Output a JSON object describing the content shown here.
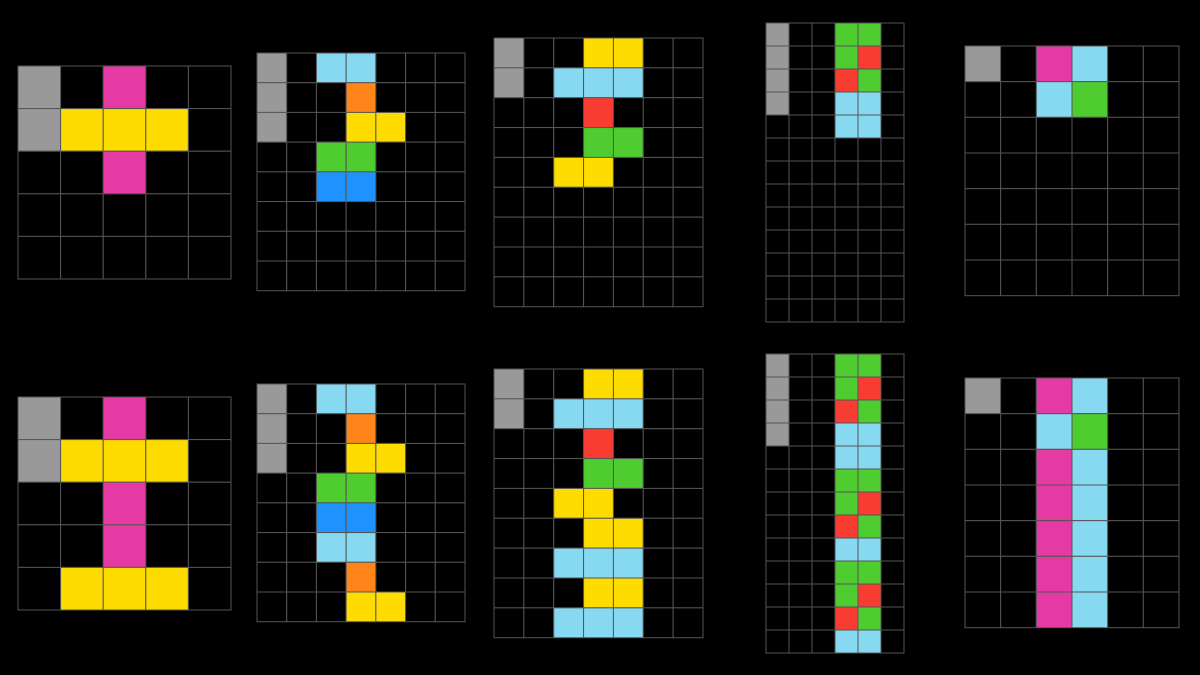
{
  "palette": [
    "#000000",
    "#999999",
    "#e53aa3",
    "#ffdc00",
    "#87d8f1",
    "#ff851b",
    "#4fcc30",
    "#1e93ff",
    "#f93c31"
  ],
  "pairs": [
    {
      "input": {
        "rows": [
          [
            1,
            0,
            2,
            0,
            0
          ],
          [
            1,
            3,
            3,
            3,
            0
          ],
          [
            0,
            0,
            2,
            0,
            0
          ],
          [
            0,
            0,
            0,
            0,
            0
          ],
          [
            0,
            0,
            0,
            0,
            0
          ]
        ]
      },
      "output": {
        "rows": [
          [
            1,
            0,
            2,
            0,
            0
          ],
          [
            1,
            3,
            3,
            3,
            0
          ],
          [
            0,
            0,
            2,
            0,
            0
          ],
          [
            0,
            0,
            2,
            0,
            0
          ],
          [
            0,
            3,
            3,
            3,
            0
          ]
        ]
      }
    },
    {
      "input": {
        "rows": [
          [
            1,
            0,
            4,
            4,
            0,
            0,
            0
          ],
          [
            1,
            0,
            0,
            5,
            0,
            0,
            0
          ],
          [
            1,
            0,
            0,
            3,
            3,
            0,
            0
          ],
          [
            0,
            0,
            6,
            6,
            0,
            0,
            0
          ],
          [
            0,
            0,
            7,
            7,
            0,
            0,
            0
          ],
          [
            0,
            0,
            0,
            0,
            0,
            0,
            0
          ],
          [
            0,
            0,
            0,
            0,
            0,
            0,
            0
          ],
          [
            0,
            0,
            0,
            0,
            0,
            0,
            0
          ]
        ]
      },
      "output": {
        "rows": [
          [
            1,
            0,
            4,
            4,
            0,
            0,
            0
          ],
          [
            1,
            0,
            0,
            5,
            0,
            0,
            0
          ],
          [
            1,
            0,
            0,
            3,
            3,
            0,
            0
          ],
          [
            0,
            0,
            6,
            6,
            0,
            0,
            0
          ],
          [
            0,
            0,
            7,
            7,
            0,
            0,
            0
          ],
          [
            0,
            0,
            4,
            4,
            0,
            0,
            0
          ],
          [
            0,
            0,
            0,
            5,
            0,
            0,
            0
          ],
          [
            0,
            0,
            0,
            3,
            3,
            0,
            0
          ]
        ]
      }
    },
    {
      "input": {
        "rows": [
          [
            1,
            0,
            0,
            3,
            3,
            0,
            0
          ],
          [
            1,
            0,
            4,
            4,
            4,
            0,
            0
          ],
          [
            0,
            0,
            0,
            8,
            0,
            0,
            0
          ],
          [
            0,
            0,
            0,
            6,
            6,
            0,
            0
          ],
          [
            0,
            0,
            3,
            3,
            0,
            0,
            0
          ],
          [
            0,
            0,
            0,
            0,
            0,
            0,
            0
          ],
          [
            0,
            0,
            0,
            0,
            0,
            0,
            0
          ],
          [
            0,
            0,
            0,
            0,
            0,
            0,
            0
          ],
          [
            0,
            0,
            0,
            0,
            0,
            0,
            0
          ]
        ]
      },
      "output": {
        "rows": [
          [
            1,
            0,
            0,
            3,
            3,
            0,
            0
          ],
          [
            1,
            0,
            4,
            4,
            4,
            0,
            0
          ],
          [
            0,
            0,
            0,
            8,
            0,
            0,
            0
          ],
          [
            0,
            0,
            0,
            6,
            6,
            0,
            0
          ],
          [
            0,
            0,
            3,
            3,
            0,
            0,
            0
          ],
          [
            0,
            0,
            0,
            3,
            3,
            0,
            0
          ],
          [
            0,
            0,
            4,
            4,
            4,
            0,
            0
          ],
          [
            0,
            0,
            0,
            3,
            3,
            0,
            0
          ],
          [
            0,
            0,
            4,
            4,
            4,
            0,
            0
          ]
        ]
      }
    },
    {
      "input": {
        "rows": [
          [
            1,
            0,
            0,
            6,
            6,
            0
          ],
          [
            1,
            0,
            0,
            6,
            8,
            0
          ],
          [
            1,
            0,
            0,
            8,
            6,
            0
          ],
          [
            1,
            0,
            0,
            4,
            4,
            0
          ],
          [
            0,
            0,
            0,
            4,
            4,
            0
          ],
          [
            0,
            0,
            0,
            0,
            0,
            0
          ],
          [
            0,
            0,
            0,
            0,
            0,
            0
          ],
          [
            0,
            0,
            0,
            0,
            0,
            0
          ],
          [
            0,
            0,
            0,
            0,
            0,
            0
          ],
          [
            0,
            0,
            0,
            0,
            0,
            0
          ],
          [
            0,
            0,
            0,
            0,
            0,
            0
          ],
          [
            0,
            0,
            0,
            0,
            0,
            0
          ],
          [
            0,
            0,
            0,
            0,
            0,
            0
          ]
        ]
      },
      "output": {
        "rows": [
          [
            1,
            0,
            0,
            6,
            6,
            0
          ],
          [
            1,
            0,
            0,
            6,
            8,
            0
          ],
          [
            1,
            0,
            0,
            8,
            6,
            0
          ],
          [
            1,
            0,
            0,
            4,
            4,
            0
          ],
          [
            0,
            0,
            0,
            4,
            4,
            0
          ],
          [
            0,
            0,
            0,
            6,
            6,
            0
          ],
          [
            0,
            0,
            0,
            6,
            8,
            0
          ],
          [
            0,
            0,
            0,
            8,
            6,
            0
          ],
          [
            0,
            0,
            0,
            4,
            4,
            0
          ],
          [
            0,
            0,
            0,
            6,
            6,
            0
          ],
          [
            0,
            0,
            0,
            6,
            8,
            0
          ],
          [
            0,
            0,
            0,
            8,
            6,
            0
          ],
          [
            0,
            0,
            0,
            4,
            4,
            0
          ]
        ]
      }
    },
    {
      "input": {
        "rows": [
          [
            1,
            0,
            2,
            4,
            0,
            0
          ],
          [
            0,
            0,
            4,
            6,
            0,
            0
          ],
          [
            0,
            0,
            0,
            0,
            0,
            0
          ],
          [
            0,
            0,
            0,
            0,
            0,
            0
          ],
          [
            0,
            0,
            0,
            0,
            0,
            0
          ],
          [
            0,
            0,
            0,
            0,
            0,
            0
          ],
          [
            0,
            0,
            0,
            0,
            0,
            0
          ]
        ]
      },
      "output": {
        "rows": [
          [
            1,
            0,
            2,
            4,
            0,
            0
          ],
          [
            0,
            0,
            4,
            6,
            0,
            0
          ],
          [
            0,
            0,
            2,
            4,
            0,
            0
          ],
          [
            0,
            0,
            2,
            4,
            0,
            0
          ],
          [
            0,
            0,
            2,
            4,
            0,
            0
          ],
          [
            0,
            0,
            2,
            4,
            0,
            0
          ],
          [
            0,
            0,
            2,
            4,
            0,
            0
          ]
        ]
      }
    }
  ]
}
